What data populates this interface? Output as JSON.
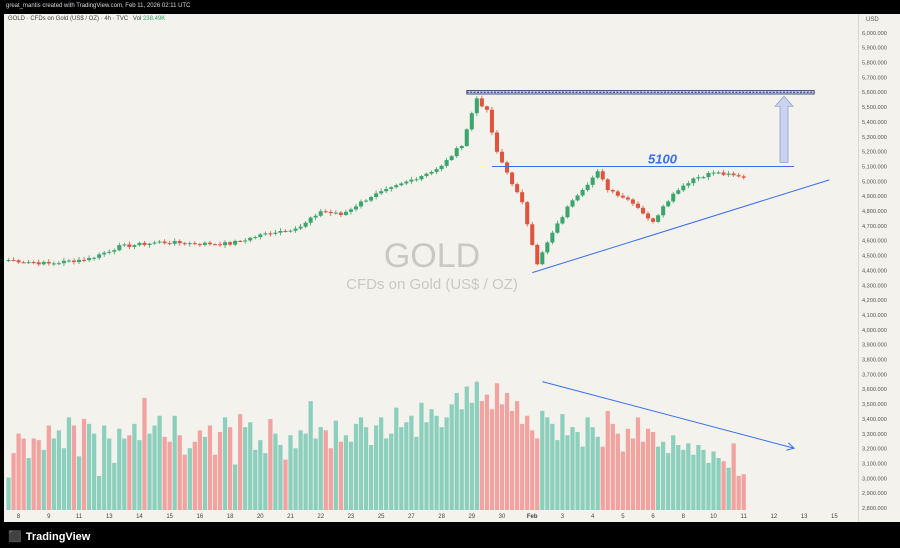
{
  "header": {
    "credit": "great_mantis created with TradingView.com, Feb 11, 2026 02:11 UTC",
    "symbol": "GOLD · CFDs on Gold (US$ / OZ) · 4h · TVC",
    "volume_label": "Vol",
    "volume_value": "238.49K"
  },
  "watermark": {
    "symbol": "GOLD",
    "description": "CFDs on Gold (US$ / OZ)"
  },
  "footer": {
    "brand": "TradingView",
    "logo_icon": "tradingview-logo-icon"
  },
  "colors": {
    "up": "#3aa56d",
    "down": "#e0533f",
    "trend": "#3a6ef0",
    "resistance": "#3f4b78",
    "background": "#f3f2ec"
  },
  "chart_data": {
    "type": "bar",
    "price_axis": {
      "currency": "USD",
      "ylim": [
        2800,
        6100
      ],
      "ticks": [
        6000,
        5900,
        5800,
        5700,
        5600,
        5500,
        5400,
        5300,
        5200,
        5100,
        5000,
        4900,
        4800,
        4700,
        4600,
        4500,
        4400,
        4300,
        4200,
        4100,
        4000,
        3900,
        3800,
        3700,
        3600,
        3500,
        3400,
        3300,
        3200,
        3100,
        3000,
        2900,
        2800
      ],
      "tick_labels": [
        "6,000.000",
        "5,900.000",
        "5,800.000",
        "5,700.000",
        "5,600.000",
        "5,500.000",
        "5,400.000",
        "5,300.000",
        "5,200.000",
        "5,100.000",
        "5,000.000",
        "4,900.000",
        "4,800.000",
        "4,700.000",
        "4,600.000",
        "4,500.000",
        "4,400.000",
        "4,300.000",
        "4,200.000",
        "4,100.000",
        "4,000.000",
        "3,900.000",
        "3,800.000",
        "3,700.000",
        "3,600.000",
        "3,500.000",
        "3,400.000",
        "3,300.000",
        "3,200.000",
        "3,100.000",
        "3,000.000",
        "2,900.000",
        "2,800.000"
      ]
    },
    "time_axis": {
      "labels": [
        "8",
        "9",
        "11",
        "13",
        "14",
        "15",
        "16",
        "18",
        "20",
        "21",
        "22",
        "23",
        "25",
        "27",
        "28",
        "29",
        "30",
        "Feb",
        "3",
        "4",
        "5",
        "6",
        "8",
        "10",
        "11",
        "12",
        "13",
        "15"
      ],
      "label_bars": [
        2,
        8,
        14,
        20,
        26,
        32,
        38,
        44,
        50,
        56,
        62,
        68,
        74,
        80,
        86,
        92,
        98,
        104,
        110,
        116,
        122,
        128,
        134,
        140,
        146,
        152,
        158,
        164
      ],
      "n_slots": 168
    },
    "price_path": [
      [
        0,
        4470
      ],
      [
        8,
        4445
      ],
      [
        16,
        4480
      ],
      [
        22,
        4560
      ],
      [
        30,
        4590
      ],
      [
        38,
        4580
      ],
      [
        44,
        4580
      ],
      [
        52,
        4655
      ],
      [
        58,
        4690
      ],
      [
        62,
        4800
      ],
      [
        66,
        4775
      ],
      [
        72,
        4900
      ],
      [
        76,
        4950
      ],
      [
        80,
        5010
      ],
      [
        86,
        5100
      ],
      [
        90,
        5250
      ],
      [
        93,
        5560
      ],
      [
        95,
        5470
      ],
      [
        97,
        5190
      ],
      [
        99,
        5060
      ],
      [
        102,
        4850
      ],
      [
        105,
        4450
      ],
      [
        108,
        4650
      ],
      [
        112,
        4880
      ],
      [
        117,
        5060
      ],
      [
        119,
        4950
      ],
      [
        124,
        4860
      ],
      [
        128,
        4720
      ],
      [
        130,
        4840
      ],
      [
        133,
        4950
      ],
      [
        136,
        5020
      ],
      [
        140,
        5060
      ],
      [
        145,
        5030
      ]
    ],
    "volume_levels": [
      3000,
      3150,
      3270,
      3240,
      3120,
      3240,
      3230,
      3170,
      3320,
      3240,
      3290,
      3180,
      3370,
      3320,
      3130,
      3360,
      3330,
      3270,
      3010,
      3320,
      3240,
      3090,
      3300,
      3240,
      3260,
      3330,
      3230,
      3490,
      3270,
      3320,
      3380,
      3250,
      3220,
      3380,
      3260,
      3140,
      3180,
      3220,
      3290,
      3250,
      3320,
      3140,
      3280,
      3370,
      3310,
      3080,
      3390,
      3310,
      3340,
      3170,
      3230,
      3150,
      3360,
      3270,
      3200,
      3110,
      3260,
      3180,
      3290,
      3270,
      3470,
      3240,
      3310,
      3290,
      3180,
      3350,
      3220,
      3260,
      3220,
      3330,
      3370,
      3310,
      3200,
      3320,
      3370,
      3240,
      3270,
      3430,
      3310,
      3340,
      3380,
      3250,
      3460,
      3340,
      3420,
      3380,
      3310,
      3370,
      3450,
      3520,
      3420,
      3560,
      3460,
      3590,
      3470,
      3510,
      3420,
      3580,
      3450,
      3520,
      3410,
      3470,
      3330,
      3380,
      3290,
      3240,
      3410,
      3370,
      3330,
      3230,
      3390,
      3260,
      3310,
      3280,
      3190,
      3370,
      3310,
      3250,
      3190,
      3410,
      3330,
      3270,
      3160,
      3300,
      3240,
      3370,
      3220,
      3300,
      3280,
      3190,
      3220,
      3150,
      3260,
      3200,
      3170,
      3210,
      3140,
      3200,
      3170,
      3090,
      3160,
      3120,
      3100,
      3060,
      3210,
      3010,
      3020
    ],
    "volume_scale": [
      2800,
      3600
    ],
    "levels": [
      {
        "price": 5600
      },
      {
        "price": 5100,
        "text": "5100"
      }
    ],
    "trendlines": [
      {
        "from": [
          104,
          4385
        ],
        "to": [
          163,
          5010
        ]
      },
      {
        "from": [
          106,
          3590
        ],
        "to": [
          156,
          3180
        ]
      }
    ],
    "target_arrow": {
      "at": 154,
      "from": 5100,
      "to": 5600
    }
  }
}
